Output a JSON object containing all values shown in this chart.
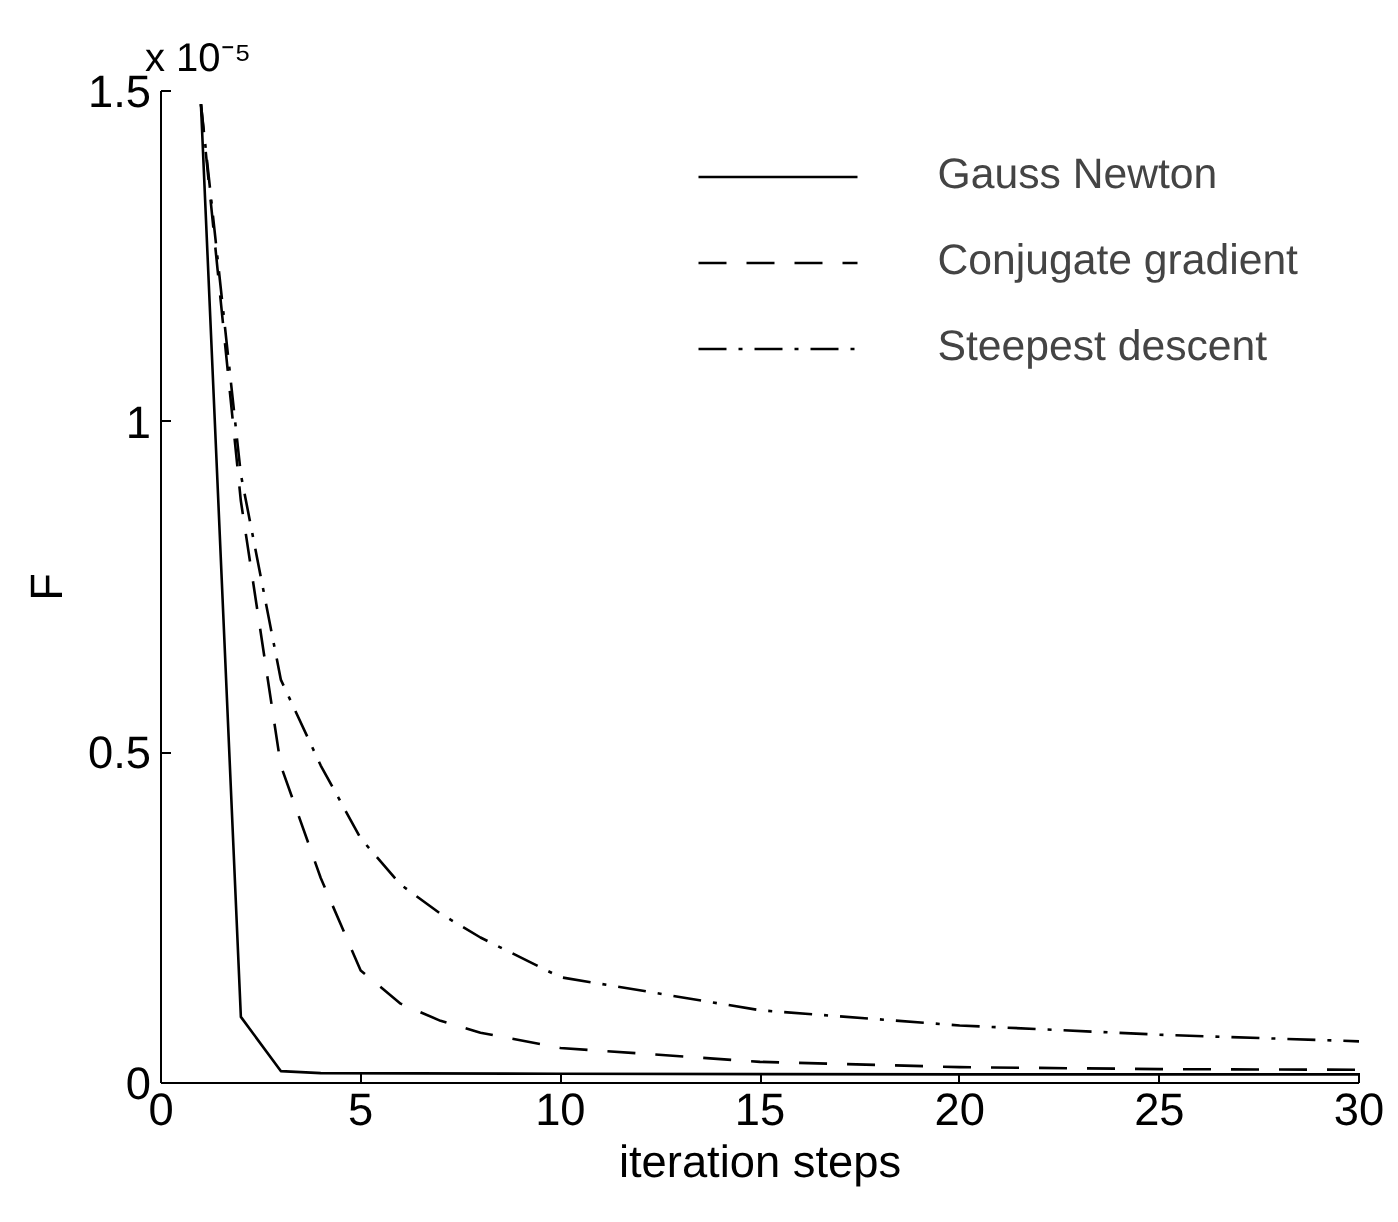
{
  "chart_data": {
    "type": "line",
    "xlabel": "iteration steps",
    "ylabel": "F",
    "annotations": [
      "x 10⁻⁵"
    ],
    "xlim": [
      0,
      30
    ],
    "xticks": [
      0,
      5,
      10,
      15,
      20,
      25,
      30
    ],
    "ylim": [
      0,
      1.5
    ],
    "yticks": [
      0,
      0.5,
      1,
      1.5
    ],
    "grid": false,
    "legend": "top right",
    "marker": "none",
    "series": [
      {
        "name": "Gauss Newton",
        "color": "#000000",
        "line_style": "solid",
        "x": [
          1,
          2,
          3,
          4,
          10,
          20,
          30
        ],
        "values": [
          1.48,
          0.1,
          0.018,
          0.015,
          0.014,
          0.013,
          0.013
        ]
      },
      {
        "name": "Conjugate gradient",
        "color": "#000000",
        "line_style": "dashed",
        "x": [
          1,
          2,
          3,
          4,
          5,
          6,
          7,
          8,
          10,
          15,
          20,
          25,
          30
        ],
        "values": [
          1.48,
          0.88,
          0.48,
          0.31,
          0.17,
          0.12,
          0.094,
          0.076,
          0.053,
          0.032,
          0.024,
          0.021,
          0.02
        ]
      },
      {
        "name": "Steepest descent",
        "color": "#000000",
        "line_style": "dashdot",
        "x": [
          1,
          2,
          3,
          4,
          5,
          6,
          7,
          8,
          10,
          15,
          20,
          25,
          30
        ],
        "values": [
          1.48,
          0.92,
          0.61,
          0.48,
          0.37,
          0.3,
          0.256,
          0.22,
          0.16,
          0.11,
          0.087,
          0.073,
          0.063
        ]
      }
    ]
  }
}
